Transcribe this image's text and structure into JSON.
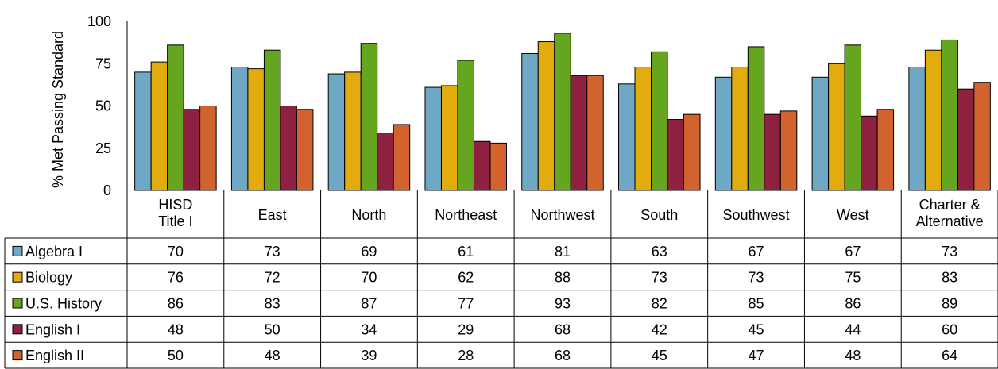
{
  "chart_data": {
    "type": "bar",
    "title": "",
    "xlabel": "",
    "ylabel": "% Met Passing Standard",
    "ylim": [
      0,
      100
    ],
    "yticks": [
      0,
      25,
      50,
      75,
      100
    ],
    "grid": false,
    "legend": "data-table-left",
    "categories": [
      [
        "HISD",
        "Title I"
      ],
      [
        "East"
      ],
      [
        "North"
      ],
      [
        "Northeast"
      ],
      [
        "Northwest"
      ],
      [
        "South"
      ],
      [
        "Southwest"
      ],
      [
        "West"
      ],
      [
        "Charter &",
        "Alternative"
      ]
    ],
    "series": [
      {
        "name": "Algebra I",
        "color": "#6fa8c4",
        "values": [
          70,
          73,
          69,
          61,
          81,
          63,
          67,
          67,
          73
        ]
      },
      {
        "name": "Biology",
        "color": "#e3ac0e",
        "values": [
          76,
          72,
          70,
          62,
          88,
          73,
          73,
          75,
          83
        ]
      },
      {
        "name": "U.S. History",
        "color": "#65a520",
        "values": [
          86,
          83,
          87,
          77,
          93,
          82,
          85,
          86,
          89
        ]
      },
      {
        "name": "English I",
        "color": "#8f2140",
        "values": [
          48,
          50,
          34,
          29,
          68,
          42,
          45,
          44,
          60
        ]
      },
      {
        "name": "English II",
        "color": "#d2632f",
        "values": [
          50,
          48,
          39,
          28,
          68,
          45,
          47,
          48,
          64
        ]
      }
    ]
  }
}
